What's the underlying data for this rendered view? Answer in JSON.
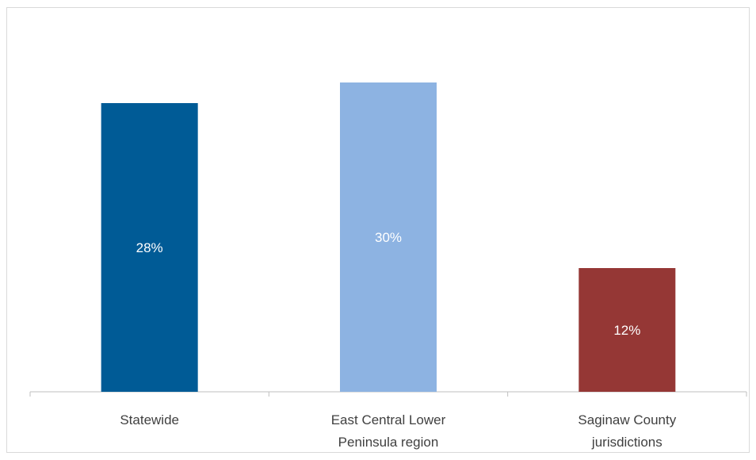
{
  "chart_data": {
    "type": "bar",
    "categories": [
      [
        "Statewide"
      ],
      [
        "East Central Lower",
        "Peninsula region"
      ],
      [
        "Saginaw County",
        "jurisdictions"
      ]
    ],
    "values": [
      28,
      30,
      12
    ],
    "value_labels": [
      "28%",
      "30%",
      "12%"
    ],
    "colors": [
      "#005b96",
      "#8db3e2",
      "#953735"
    ],
    "ylim": [
      0,
      35
    ],
    "grid": false,
    "legend": "none",
    "title": "",
    "xlabel": "",
    "ylabel": ""
  }
}
